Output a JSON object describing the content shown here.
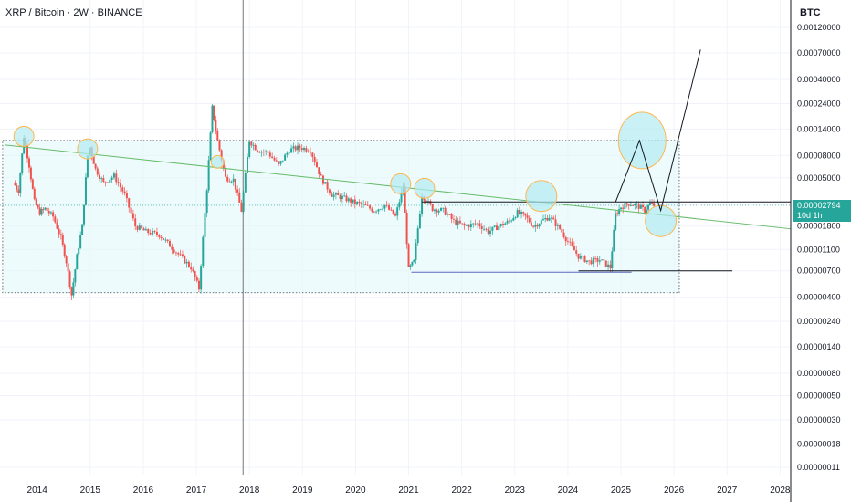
{
  "header": {
    "symbol_title": "XRP / Bitcoin · 2W · BINANCE",
    "unit": "BTC"
  },
  "price_tag": {
    "value": "0.00002794",
    "countdown": "10d 1h"
  },
  "colors": {
    "up": "#26a69a",
    "down": "#ef5350",
    "box_fill": "#e0f7fa",
    "trendline": "#66bb6a",
    "circle_fill": "#b2ebf2",
    "circle_stroke": "#ffb74d",
    "price_tag": "#26a69a"
  },
  "chart_data": {
    "type": "candlestick",
    "title": "XRP / Bitcoin · 2W · BINANCE",
    "y_unit": "BTC",
    "y_scale": "log",
    "y_tick_labels": [
      "0.00120000",
      "0.00070000",
      "0.00040000",
      "0.00024000",
      "0.00014000",
      "0.00008000",
      "0.00005000",
      "0.00002794",
      "0.00001800",
      "0.00001100",
      "0.00000700",
      "0.00000400",
      "0.00000240",
      "0.00000140",
      "0.00000080",
      "0.00000050",
      "0.00000030",
      "0.00000018",
      "0.00000011"
    ],
    "x_tick_labels": [
      "2014",
      "2015",
      "2016",
      "2017",
      "2018",
      "2019",
      "2020",
      "2021",
      "2022",
      "2023",
      "2024",
      "2025",
      "2026",
      "2027",
      "2028"
    ],
    "x_range": [
      2013.3,
      2028.2
    ],
    "ylim": [
      1e-07,
      0.0014
    ],
    "last_price": 2.794e-05,
    "series": [
      {
        "x": 2013.55,
        "y": 4.5e-05
      },
      {
        "x": 2013.65,
        "y": 3.8e-05
      },
      {
        "x": 2013.75,
        "y": 0.00012
      },
      {
        "x": 2013.85,
        "y": 6.5e-05
      },
      {
        "x": 2013.95,
        "y": 3e-05
      },
      {
        "x": 2014.05,
        "y": 2.4e-05
      },
      {
        "x": 2014.15,
        "y": 2.6e-05
      },
      {
        "x": 2014.3,
        "y": 2.2e-05
      },
      {
        "x": 2014.45,
        "y": 1.4e-05
      },
      {
        "x": 2014.55,
        "y": 8.5e-06
      },
      {
        "x": 2014.65,
        "y": 4.2e-06
      },
      {
        "x": 2014.75,
        "y": 9.5e-06
      },
      {
        "x": 2014.85,
        "y": 1.8e-05
      },
      {
        "x": 2014.95,
        "y": 8e-05
      },
      {
        "x": 2015.0,
        "y": 9.5e-05
      },
      {
        "x": 2015.1,
        "y": 6e-05
      },
      {
        "x": 2015.25,
        "y": 4.5e-05
      },
      {
        "x": 2015.45,
        "y": 5.2e-05
      },
      {
        "x": 2015.65,
        "y": 3.5e-05
      },
      {
        "x": 2015.85,
        "y": 1.8e-05
      },
      {
        "x": 2016.05,
        "y": 1.6e-05
      },
      {
        "x": 2016.3,
        "y": 1.5e-05
      },
      {
        "x": 2016.5,
        "y": 1.2e-05
      },
      {
        "x": 2016.7,
        "y": 9.5e-06
      },
      {
        "x": 2016.9,
        "y": 7.5e-06
      },
      {
        "x": 2017.05,
        "y": 4.8e-06
      },
      {
        "x": 2017.2,
        "y": 4e-05
      },
      {
        "x": 2017.3,
        "y": 0.00022
      },
      {
        "x": 2017.4,
        "y": 0.00011
      },
      {
        "x": 2017.55,
        "y": 5e-05
      },
      {
        "x": 2017.7,
        "y": 4.8e-05
      },
      {
        "x": 2017.85,
        "y": 2.5e-05
      },
      {
        "x": 2018.0,
        "y": 0.00011
      },
      {
        "x": 2018.15,
        "y": 9e-05
      },
      {
        "x": 2018.35,
        "y": 8.5e-05
      },
      {
        "x": 2018.55,
        "y": 6.5e-05
      },
      {
        "x": 2018.75,
        "y": 9e-05
      },
      {
        "x": 2018.95,
        "y": 9.5e-05
      },
      {
        "x": 2019.15,
        "y": 9e-05
      },
      {
        "x": 2019.35,
        "y": 5e-05
      },
      {
        "x": 2019.55,
        "y": 3.5e-05
      },
      {
        "x": 2019.75,
        "y": 3.3e-05
      },
      {
        "x": 2019.95,
        "y": 3e-05
      },
      {
        "x": 2020.15,
        "y": 2.8e-05
      },
      {
        "x": 2020.35,
        "y": 2.5e-05
      },
      {
        "x": 2020.55,
        "y": 2.8e-05
      },
      {
        "x": 2020.75,
        "y": 2.2e-05
      },
      {
        "x": 2020.9,
        "y": 4.2e-05
      },
      {
        "x": 2021.0,
        "y": 7.2e-06
      },
      {
        "x": 2021.1,
        "y": 8.5e-06
      },
      {
        "x": 2021.25,
        "y": 3.5e-05
      },
      {
        "x": 2021.45,
        "y": 2.6e-05
      },
      {
        "x": 2021.65,
        "y": 2.5e-05
      },
      {
        "x": 2021.85,
        "y": 2e-05
      },
      {
        "x": 2022.05,
        "y": 1.8e-05
      },
      {
        "x": 2022.3,
        "y": 1.9e-05
      },
      {
        "x": 2022.5,
        "y": 1.6e-05
      },
      {
        "x": 2022.7,
        "y": 1.8e-05
      },
      {
        "x": 2022.9,
        "y": 2e-05
      },
      {
        "x": 2023.05,
        "y": 2.4e-05
      },
      {
        "x": 2023.2,
        "y": 2.2e-05
      },
      {
        "x": 2023.35,
        "y": 1.8e-05
      },
      {
        "x": 2023.5,
        "y": 2e-05
      },
      {
        "x": 2023.65,
        "y": 2.2e-05
      },
      {
        "x": 2023.85,
        "y": 1.7e-05
      },
      {
        "x": 2024.0,
        "y": 1.3e-05
      },
      {
        "x": 2024.2,
        "y": 9.5e-06
      },
      {
        "x": 2024.4,
        "y": 8.5e-06
      },
      {
        "x": 2024.6,
        "y": 8.8e-06
      },
      {
        "x": 2024.8,
        "y": 7.5e-06
      },
      {
        "x": 2024.9,
        "y": 2.3e-05
      },
      {
        "x": 2025.0,
        "y": 2.7e-05
      },
      {
        "x": 2025.15,
        "y": 2.9e-05
      },
      {
        "x": 2025.3,
        "y": 2.8e-05
      },
      {
        "x": 2025.45,
        "y": 2.5e-05
      },
      {
        "x": 2025.55,
        "y": 2.9e-05
      },
      {
        "x": 2025.62,
        "y": 2.794e-05
      }
    ],
    "drawings": {
      "range_box": {
        "x1": 2013.35,
        "x2": 2026.1,
        "y_low": 4.4e-06,
        "y_high": 0.00011
      },
      "green_trendline": {
        "x1": 2013.4,
        "y1": 0.0001,
        "x2": 2028.2,
        "y2": 1.7e-05
      },
      "resistance_line": {
        "x1": 2021.25,
        "x2": 2028.2,
        "y": 3e-05
      },
      "support_lines": [
        {
          "x1": 2021.05,
          "x2": 2025.2,
          "y": 6.8e-06
        },
        {
          "x1": 2024.2,
          "x2": 2027.1,
          "y": 7e-06
        }
      ],
      "circles": [
        {
          "x": 2013.75,
          "y": 0.00012,
          "r": 11
        },
        {
          "x": 2014.95,
          "y": 9.2e-05,
          "r": 11
        },
        {
          "x": 2017.4,
          "y": 7e-05,
          "r": 7
        },
        {
          "x": 2020.85,
          "y": 4.4e-05,
          "r": 11
        },
        {
          "x": 2021.3,
          "y": 4e-05,
          "r": 11
        },
        {
          "x": 2023.5,
          "y": 3.4e-05,
          "r": 17
        },
        {
          "x": 2025.4,
          "y": 0.00011,
          "rx": 26,
          "ry": 31
        },
        {
          "x": 2025.75,
          "y": 2e-05,
          "r": 17
        }
      ],
      "projection_path": [
        {
          "x": 2024.9,
          "y": 3e-05
        },
        {
          "x": 2025.35,
          "y": 0.00011
        },
        {
          "x": 2025.75,
          "y": 2.5e-05
        },
        {
          "x": 2026.5,
          "y": 0.00075
        }
      ],
      "crosshair_x": 2017.88
    }
  }
}
